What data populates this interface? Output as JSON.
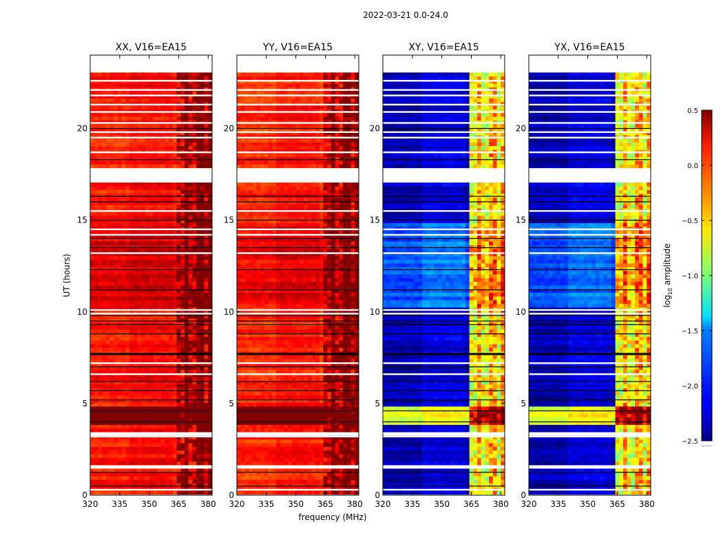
{
  "figure_title": "2022-03-21 0.0-24.0",
  "chart_data": {
    "type": "heatmap",
    "title": "2022-03-21 0.0-24.0",
    "xlabel": "frequency (MHz)",
    "ylabel": "UT (hours)",
    "xlim": [
      320,
      382
    ],
    "ylim": [
      0,
      24
    ],
    "xticks": [
      320,
      335,
      350,
      365,
      380
    ],
    "yticks": [
      0,
      5,
      10,
      15,
      20
    ],
    "colormap": "jet",
    "colorbar": {
      "label": "log10 amplitude",
      "label_prefix": "log",
      "label_sub": "10",
      "label_suffix": " amplitude",
      "range": [
        -2.5,
        0.5
      ],
      "ticks": [
        "0.5",
        "0.0",
        "−0.5",
        "−1.0",
        "−1.5",
        "−2.0",
        "−2.5"
      ]
    },
    "panels": [
      {
        "name": "XX",
        "title": "XX, V16=EA15",
        "base": 0.05,
        "band_level": 0.3,
        "mid_base": 0.25
      },
      {
        "name": "YY",
        "title": "YY, V16=EA15",
        "base": 0.0,
        "band_level": 0.3,
        "mid_base": 0.25
      },
      {
        "name": "XY",
        "title": "XY, V16=EA15",
        "base": -2.35,
        "band_level": -0.7,
        "mid_base": -1.9
      },
      {
        "name": "YX",
        "title": "YX, V16=EA15",
        "base": -2.35,
        "band_level": -0.7,
        "mid_base": -1.9
      }
    ],
    "data_start_hour": 0.05,
    "data_end_hour": 23.05,
    "bright_band_mhz": [
      364,
      381
    ],
    "flagged_hours": [
      [
        1.5,
        1.7
      ],
      [
        3.3,
        3.5
      ],
      [
        17.0,
        17.8
      ]
    ],
    "black_lines_hours": [
      0.5,
      1.25,
      4.0,
      4.6,
      5.2,
      5.7,
      6.2,
      7.0,
      7.7,
      8.8,
      9.3,
      9.5,
      9.8,
      11.2,
      12.3,
      13.5,
      14.0,
      15.0,
      16.0,
      16.3,
      18.3,
      20.0
    ],
    "white_lines_hours": [
      0.3,
      3.2,
      6.6,
      7.2,
      9.9,
      10.1,
      13.2,
      14.2,
      14.5,
      15.5,
      18.7,
      19.5,
      19.8,
      20.3,
      20.9,
      21.3,
      21.8,
      22.1,
      22.6
    ]
  }
}
